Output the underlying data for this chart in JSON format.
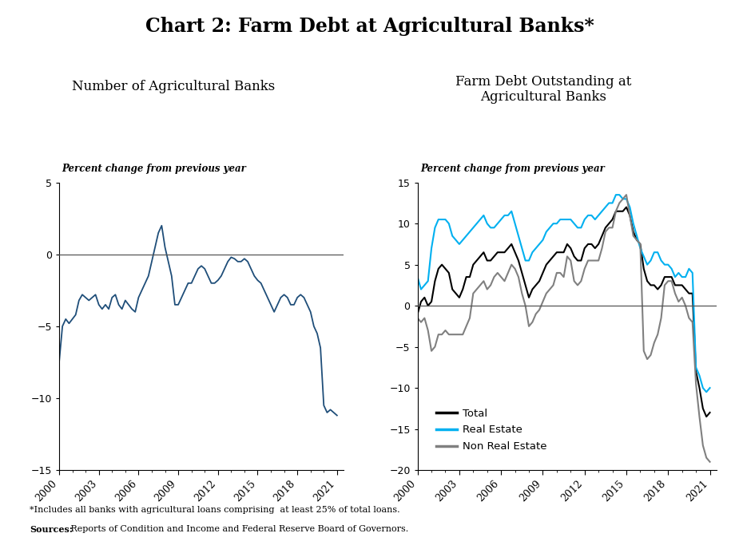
{
  "title": "Chart 2: Farm Debt at Agricultural Banks*",
  "left_title": "Number of Agricultural Banks",
  "right_title": "Farm Debt Outstanding at\nAgricultural Banks",
  "left_ylabel": "Percent change from previous year",
  "right_ylabel": "Percent change from previous year",
  "footnote1": "*Includes all banks with agricultural loans comprising  at least 25% of total loans.",
  "footnote2_bold": "Sources:",
  "footnote2_rest": " Reports of Condition and Income and Federal Reserve Board of Governors.",
  "left_ylim": [
    -15,
    5
  ],
  "right_ylim": [
    -20,
    15
  ],
  "left_yticks": [
    -15,
    -10,
    -5,
    0,
    5
  ],
  "right_yticks": [
    -20,
    -15,
    -10,
    -5,
    0,
    5,
    10,
    15
  ],
  "line_color_left": "#1f4e79",
  "line_color_total": "#000000",
  "line_color_realestate": "#00b0f0",
  "line_color_nonrealestate": "#808080",
  "left_data": [
    -7.5,
    -5.0,
    -4.5,
    -4.8,
    -4.5,
    -4.2,
    -3.2,
    -2.8,
    -3.0,
    -3.2,
    -3.0,
    -2.8,
    -3.5,
    -3.8,
    -3.5,
    -3.8,
    -3.0,
    -2.8,
    -3.5,
    -3.8,
    -3.2,
    -3.5,
    -3.8,
    -4.0,
    -3.0,
    -2.5,
    -2.0,
    -1.5,
    -0.5,
    0.5,
    1.5,
    2.0,
    0.5,
    -0.5,
    -1.5,
    -3.5,
    -3.5,
    -3.0,
    -2.5,
    -2.0,
    -2.0,
    -1.5,
    -1.0,
    -0.8,
    -1.0,
    -1.5,
    -2.0,
    -2.0,
    -1.8,
    -1.5,
    -1.0,
    -0.5,
    -0.2,
    -0.3,
    -0.5,
    -0.5,
    -0.3,
    -0.5,
    -1.0,
    -1.5,
    -1.8,
    -2.0,
    -2.5,
    -3.0,
    -3.5,
    -4.0,
    -3.5,
    -3.0,
    -2.8,
    -3.0,
    -3.5,
    -3.5,
    -3.0,
    -2.8,
    -3.0,
    -3.5,
    -4.0,
    -5.0,
    -5.5,
    -6.5,
    -10.5,
    -11.0,
    -10.8,
    -11.0,
    -11.2
  ],
  "total_data": [
    -1.0,
    0.5,
    1.0,
    0.0,
    0.5,
    3.0,
    4.5,
    5.0,
    4.5,
    4.0,
    2.0,
    1.5,
    1.0,
    2.0,
    3.5,
    3.5,
    5.0,
    5.5,
    6.0,
    6.5,
    5.5,
    5.5,
    6.0,
    6.5,
    6.5,
    6.5,
    7.0,
    7.5,
    6.5,
    5.5,
    4.0,
    2.5,
    1.0,
    2.0,
    2.5,
    3.0,
    4.0,
    5.0,
    5.5,
    6.0,
    6.5,
    6.5,
    6.5,
    7.5,
    7.0,
    6.0,
    5.5,
    5.5,
    7.0,
    7.5,
    7.5,
    7.0,
    7.5,
    8.5,
    9.5,
    10.0,
    10.5,
    11.5,
    11.5,
    11.5,
    12.0,
    11.0,
    9.0,
    8.0,
    7.5,
    4.5,
    3.0,
    2.5,
    2.5,
    2.0,
    2.5,
    3.5,
    3.5,
    3.5,
    2.5,
    2.5,
    2.5,
    2.0,
    1.5,
    1.5,
    -8.0,
    -10.0,
    -12.5,
    -13.5,
    -13.0
  ],
  "realestate_data": [
    3.5,
    2.0,
    2.5,
    3.0,
    7.0,
    9.5,
    10.5,
    10.5,
    10.5,
    10.0,
    8.5,
    8.0,
    7.5,
    8.0,
    8.5,
    9.0,
    9.5,
    10.0,
    10.5,
    11.0,
    10.0,
    9.5,
    9.5,
    10.0,
    10.5,
    11.0,
    11.0,
    11.5,
    10.0,
    8.5,
    7.0,
    5.5,
    5.5,
    6.5,
    7.0,
    7.5,
    8.0,
    9.0,
    9.5,
    10.0,
    10.0,
    10.5,
    10.5,
    10.5,
    10.5,
    10.0,
    9.5,
    9.5,
    10.5,
    11.0,
    11.0,
    10.5,
    11.0,
    11.5,
    12.0,
    12.5,
    12.5,
    13.5,
    13.5,
    13.0,
    13.0,
    12.0,
    10.0,
    8.5,
    7.0,
    6.0,
    5.0,
    5.5,
    6.5,
    6.5,
    5.5,
    5.0,
    5.0,
    4.5,
    3.5,
    4.0,
    3.5,
    3.5,
    4.5,
    4.0,
    -7.5,
    -8.5,
    -10.0,
    -10.5,
    -10.0
  ],
  "nonrealestate_data": [
    -1.5,
    -2.0,
    -1.5,
    -3.0,
    -5.5,
    -5.0,
    -3.5,
    -3.5,
    -3.0,
    -3.5,
    -3.5,
    -3.5,
    -3.5,
    -3.5,
    -2.5,
    -1.5,
    1.5,
    2.0,
    2.5,
    3.0,
    2.0,
    2.5,
    3.5,
    4.0,
    3.5,
    3.0,
    4.0,
    5.0,
    4.5,
    3.5,
    1.5,
    0.0,
    -2.5,
    -2.0,
    -1.0,
    -0.5,
    0.5,
    1.5,
    2.0,
    2.5,
    4.0,
    4.0,
    3.5,
    6.0,
    5.5,
    3.0,
    2.5,
    3.0,
    4.5,
    5.5,
    5.5,
    5.5,
    5.5,
    7.0,
    9.0,
    9.5,
    9.5,
    11.5,
    12.5,
    13.0,
    13.5,
    11.0,
    8.5,
    8.0,
    7.5,
    -5.5,
    -6.5,
    -6.0,
    -4.5,
    -3.5,
    -1.5,
    2.5,
    3.0,
    3.0,
    1.5,
    0.5,
    1.0,
    0.0,
    -1.5,
    -2.0,
    -9.5,
    -13.5,
    -17.0,
    -18.5,
    -19.0
  ]
}
